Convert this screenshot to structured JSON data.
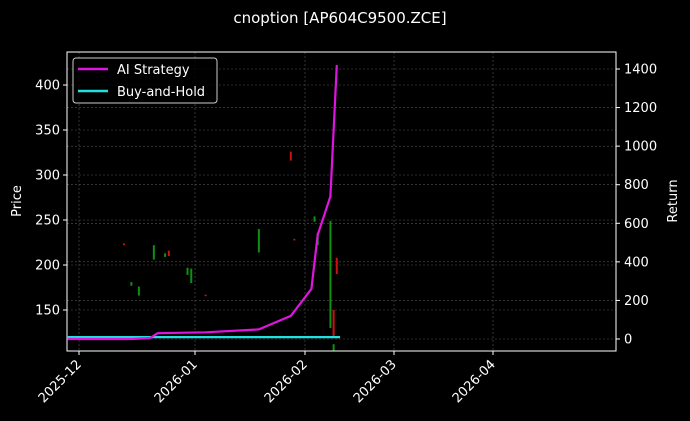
{
  "chart_data": {
    "type": "line",
    "title": "cnoption [AP604C9500.ZCE]",
    "xlabel": "",
    "ylabel": "Price",
    "ylabel_right": "Return",
    "x_ticks": [
      "2025-12",
      "2026-01",
      "2026-02",
      "2026-03",
      "2026-04"
    ],
    "y_ticks_left": [
      150,
      200,
      250,
      300,
      350,
      400
    ],
    "y_ticks_right": [
      0,
      200,
      400,
      600,
      800,
      1000,
      1200,
      1400
    ],
    "ylim_left": [
      104,
      437
    ],
    "ylim_right": [
      -62,
      1488
    ],
    "grid": true,
    "legend_position": "upper left",
    "legend": [
      {
        "label": "AI Strategy",
        "color": "#e014e0"
      },
      {
        "label": "Buy-and-Hold",
        "color": "#22e0e0"
      }
    ],
    "series": [
      {
        "name": "AI Strategy",
        "axis": "right",
        "color": "#e014e0",
        "x": [
          "2025-11-28",
          "2025-12-15",
          "2025-12-20",
          "2025-12-22",
          "2026-01-04",
          "2026-01-19",
          "2026-01-28",
          "2026-02-03",
          "2026-02-05",
          "2026-02-09",
          "2026-02-11"
        ],
        "values": [
          0,
          0,
          5,
          30,
          35,
          50,
          120,
          260,
          540,
          740,
          1420
        ]
      },
      {
        "name": "Buy-and-Hold",
        "axis": "right",
        "color": "#22e0e0",
        "x": [
          "2025-11-28",
          "2026-02-12"
        ],
        "values": [
          10,
          10
        ]
      }
    ],
    "candles": [
      {
        "date": "2025-12-13",
        "open": 222,
        "close": 224,
        "color": "#d01010"
      },
      {
        "date": "2025-12-15",
        "open": 181,
        "close": 177,
        "color": "#109010"
      },
      {
        "date": "2025-12-17",
        "open": 176,
        "close": 166,
        "color": "#109010"
      },
      {
        "date": "2025-12-21",
        "open": 222,
        "close": 206,
        "color": "#109010"
      },
      {
        "date": "2025-12-24",
        "open": 213,
        "close": 209,
        "color": "#109010"
      },
      {
        "date": "2025-12-25",
        "open": 210,
        "close": 216,
        "color": "#d01010"
      },
      {
        "date": "2025-12-30",
        "open": 197,
        "close": 189,
        "color": "#109010"
      },
      {
        "date": "2025-12-31",
        "open": 196,
        "close": 180,
        "color": "#109010"
      },
      {
        "date": "2026-01-04",
        "open": 166,
        "close": 167,
        "color": "#d01010"
      },
      {
        "date": "2026-01-19",
        "open": 240,
        "close": 214,
        "color": "#109010"
      },
      {
        "date": "2026-01-28",
        "open": 316,
        "close": 326,
        "color": "#d01010"
      },
      {
        "date": "2026-01-29",
        "open": 228,
        "close": 229,
        "color": "#d01010"
      },
      {
        "date": "2026-02-04",
        "open": 254,
        "close": 248,
        "color": "#109010"
      },
      {
        "date": "2026-02-05",
        "open": 236,
        "close": 222,
        "color": "#109010"
      },
      {
        "date": "2026-02-09",
        "open": 249,
        "close": 130,
        "color": "#109010"
      },
      {
        "date": "2026-02-10",
        "open": 150,
        "close": 120,
        "color": "#d01010"
      },
      {
        "date": "2026-02-10b",
        "open": 112,
        "close": 104,
        "color": "#109010"
      },
      {
        "date": "2026-02-11",
        "open": 190,
        "close": 208,
        "color": "#d01010"
      }
    ]
  },
  "labels": {
    "title": "cnoption [AP604C9500.ZCE]",
    "ylabel_left": "Price",
    "ylabel_right": "Return",
    "legend_ai": "AI Strategy",
    "legend_bh": "Buy-and-Hold"
  }
}
